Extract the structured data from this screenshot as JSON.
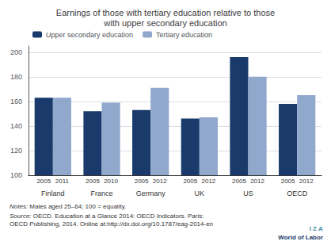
{
  "chart_data": {
    "type": "bar",
    "title": "Earnings of those with tertiary education relative to those\nwith upper secondary education",
    "categories": [
      "Finland",
      "France",
      "Germany",
      "UK",
      "US",
      "OECD"
    ],
    "series": [
      {
        "name": "Upper secondary education",
        "color": "#1a3a6b",
        "values": [
          163,
          152,
          153,
          146,
          196,
          158
        ],
        "bar_labels": [
          "2005",
          "2005",
          "2005",
          "2005",
          "2005",
          "2005"
        ]
      },
      {
        "name": "Tertiary education",
        "color": "#8fa8cc",
        "values": [
          163,
          159,
          171,
          147,
          180,
          165
        ],
        "bar_labels": [
          "2011",
          "2010",
          "2012",
          "2012",
          "2012",
          "2012"
        ]
      }
    ],
    "ylim": [
      100,
      205
    ],
    "yticks": [
      100,
      120,
      140,
      160,
      180,
      200
    ],
    "grid": true,
    "legend": "upper left",
    "annotations": [
      {
        "italic": "Notes:",
        "text": " Males aged 25–64; 100 = equality."
      },
      {
        "italic": "Source:",
        "text": " OECD. Education at a Glance 2014: OECD Indicators. Paris:\nOECD Publishing, 2014. Online at:http://dx.doi.org/10.1787/eag-2014-en"
      }
    ],
    "brand": [
      {
        "text": "I Z A",
        "color": "#4a90a4"
      },
      {
        "text": "World of Labor",
        "color": "#1a3a6b"
      }
    ]
  }
}
